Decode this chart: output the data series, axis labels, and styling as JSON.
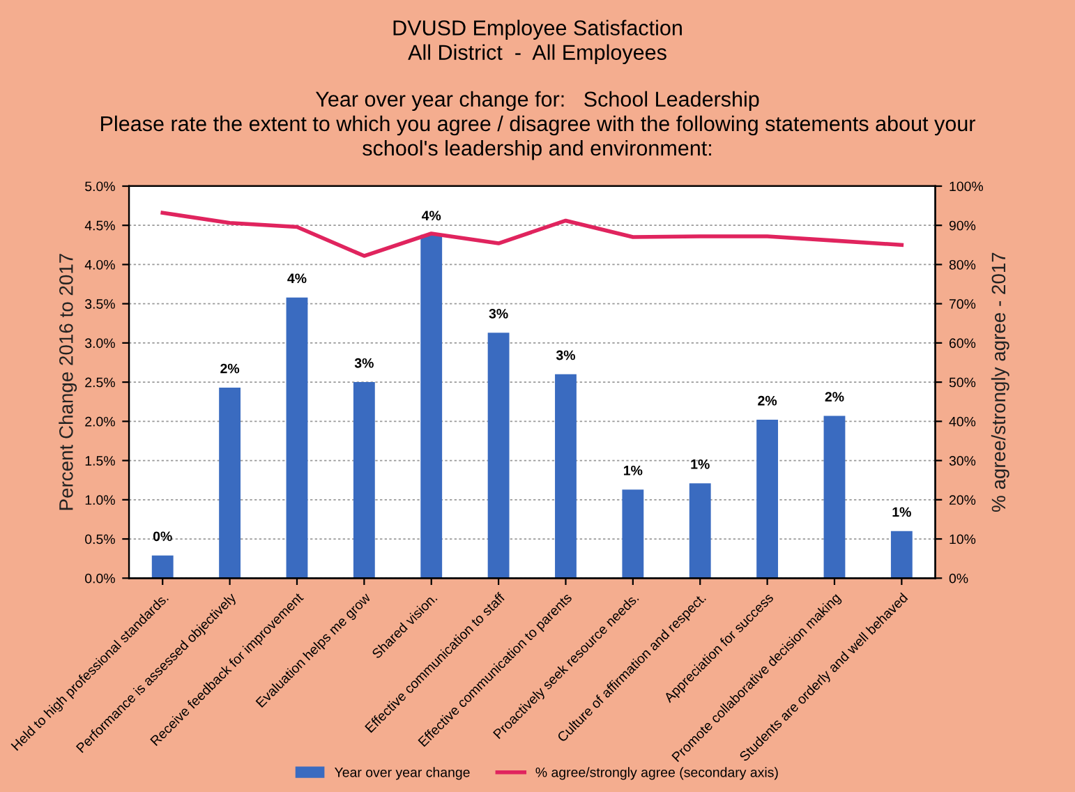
{
  "chart_data": {
    "type": "bar",
    "title": "DVUSD Employee Satisfaction\nAll District  -  All Employees",
    "subtitle": "Year over year change for:   School Leadership\nPlease rate the extent to which you agree / disagree with the following statements about your\nschool's leadership and environment:",
    "ylabel": "Percent Change 2016 to 2017",
    "y2label": "% agree/strongly agree - 2017",
    "categories": [
      "Held to high professional standards.",
      "Performance is assessed objectively",
      "Receive feedback for improvement",
      "Evaluation helps me grow",
      "Shared vision.",
      "Effective communication to staff",
      "Effective communication to parents",
      "Proactively seek resource needs.",
      "Culture of affirmation and respect.",
      "Appreciation for success",
      "Promote collaborative decision making",
      "Students are orderly and well behaved"
    ],
    "series": [
      {
        "name": "Year over year change",
        "color": "#3a6bc0",
        "values": [
          0.29,
          2.43,
          3.58,
          2.5,
          4.38,
          3.13,
          2.6,
          1.13,
          1.21,
          2.02,
          2.07,
          0.6
        ],
        "value_labels": [
          "0%",
          "2%",
          "4%",
          "3%",
          "4%",
          "3%",
          "3%",
          "1%",
          "1%",
          "2%",
          "2%",
          "1%"
        ]
      },
      {
        "name": "% agree/strongly agree (secondary axis)",
        "type": "line",
        "axis": "y2",
        "color": "#e0245e",
        "values": [
          93.2,
          90.6,
          89.6,
          82.2,
          87.9,
          85.4,
          91.2,
          87.0,
          87.2,
          87.2,
          86.1,
          85.0
        ]
      }
    ],
    "ylim": [
      0,
      5
    ],
    "yticks": [
      {
        "value": 0,
        "label": "0.0%"
      },
      {
        "value": 0.5,
        "label": "0.5%"
      },
      {
        "value": 1,
        "label": "1.0%"
      },
      {
        "value": 1.5,
        "label": "1.5%"
      },
      {
        "value": 2,
        "label": "2.0%"
      },
      {
        "value": 2.5,
        "label": "2.5%"
      },
      {
        "value": 3,
        "label": "3.0%"
      },
      {
        "value": 3.5,
        "label": "3.5%"
      },
      {
        "value": 4,
        "label": "4.0%"
      },
      {
        "value": 4.5,
        "label": "4.5%"
      },
      {
        "value": 5,
        "label": "5.0%"
      }
    ],
    "y2lim": [
      0,
      100
    ],
    "y2ticks": [
      {
        "value": 0,
        "label": "0%"
      },
      {
        "value": 10,
        "label": "10%"
      },
      {
        "value": 20,
        "label": "20%"
      },
      {
        "value": 30,
        "label": "30%"
      },
      {
        "value": 40,
        "label": "40%"
      },
      {
        "value": 50,
        "label": "50%"
      },
      {
        "value": 60,
        "label": "60%"
      },
      {
        "value": 70,
        "label": "70%"
      },
      {
        "value": 80,
        "label": "80%"
      },
      {
        "value": 90,
        "label": "90%"
      },
      {
        "value": 100,
        "label": "100%"
      }
    ],
    "grid": "y",
    "legend": "bottom",
    "marker": "none",
    "line_style": "solid"
  }
}
